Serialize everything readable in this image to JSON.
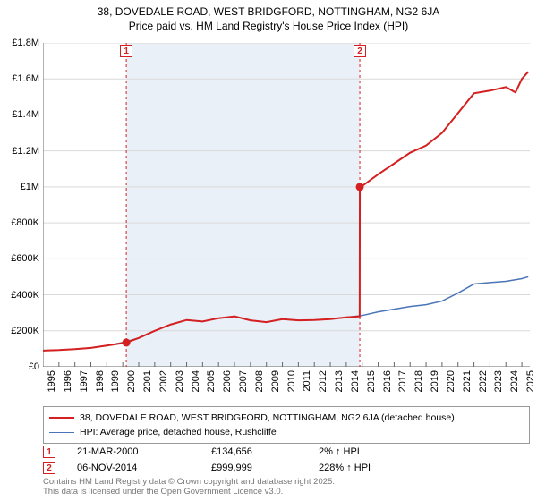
{
  "title_line1": "38, DOVEDALE ROAD, WEST BRIDGFORD, NOTTINGHAM, NG2 6JA",
  "title_line2": "Price paid vs. HM Land Registry's House Price Index (HPI)",
  "chart": {
    "type": "line",
    "background_color": "#ffffff",
    "shaded_band_color": "#eaf0f7",
    "grid_color": "#d9d9d9",
    "axis_color": "#666666",
    "title_fontsize": 12,
    "tick_fontsize": 11,
    "x": {
      "min": 1995,
      "max": 2025.5,
      "ticks": [
        1995,
        1996,
        1997,
        1998,
        1999,
        2000,
        2001,
        2002,
        2003,
        2004,
        2005,
        2006,
        2007,
        2008,
        2009,
        2010,
        2011,
        2012,
        2013,
        2014,
        2015,
        2016,
        2017,
        2018,
        2019,
        2020,
        2021,
        2022,
        2023,
        2024,
        2025
      ]
    },
    "y": {
      "min": 0,
      "max": 1800000,
      "ticks": [
        0,
        200000,
        400000,
        600000,
        800000,
        1000000,
        1200000,
        1400000,
        1600000,
        1800000
      ],
      "tick_labels": [
        "£0",
        "£200K",
        "£400K",
        "£600K",
        "£800K",
        "£1M",
        "£1.2M",
        "£1.4M",
        "£1.6M",
        "£1.8M"
      ]
    },
    "shaded_band": {
      "x_start": 2000.22,
      "x_end": 2014.85
    },
    "events": [
      {
        "n": "1",
        "x": 2000.22,
        "color": "#d42020"
      },
      {
        "n": "2",
        "x": 2014.85,
        "color": "#d42020"
      }
    ],
    "series": [
      {
        "id": "price_paid",
        "label": "38, DOVEDALE ROAD, WEST BRIDGFORD, NOTTINGHAM, NG2 6JA (detached house)",
        "color": "#d42020",
        "line_width": 2,
        "markers": [
          {
            "x": 2000.22,
            "y": 134656
          },
          {
            "x": 2014.85,
            "y": 999999
          }
        ],
        "points": [
          [
            1995,
            90000
          ],
          [
            1996,
            93000
          ],
          [
            1997,
            98000
          ],
          [
            1998,
            105000
          ],
          [
            1999,
            118000
          ],
          [
            2000.22,
            134656
          ],
          [
            2001,
            160000
          ],
          [
            2002,
            200000
          ],
          [
            2003,
            235000
          ],
          [
            2004,
            260000
          ],
          [
            2005,
            252000
          ],
          [
            2006,
            270000
          ],
          [
            2007,
            280000
          ],
          [
            2008,
            258000
          ],
          [
            2009,
            248000
          ],
          [
            2010,
            265000
          ],
          [
            2011,
            258000
          ],
          [
            2012,
            260000
          ],
          [
            2013,
            265000
          ],
          [
            2014,
            275000
          ],
          [
            2014.84,
            280000
          ],
          [
            2014.85,
            999999
          ],
          [
            2015,
            1005000
          ],
          [
            2016,
            1070000
          ],
          [
            2017,
            1130000
          ],
          [
            2018,
            1190000
          ],
          [
            2019,
            1230000
          ],
          [
            2020,
            1300000
          ],
          [
            2021,
            1410000
          ],
          [
            2022,
            1520000
          ],
          [
            2023,
            1535000
          ],
          [
            2024,
            1555000
          ],
          [
            2024.6,
            1525000
          ],
          [
            2025,
            1600000
          ],
          [
            2025.4,
            1640000
          ]
        ]
      },
      {
        "id": "hpi",
        "label": "HPI: Average price, detached house, Rushcliffe",
        "color": "#4a74b8",
        "line_width": 1.5,
        "points": [
          [
            1995,
            90000
          ],
          [
            1996,
            93000
          ],
          [
            1997,
            98000
          ],
          [
            1998,
            105000
          ],
          [
            1999,
            118000
          ],
          [
            2000,
            135000
          ],
          [
            2001,
            160000
          ],
          [
            2002,
            200000
          ],
          [
            2003,
            235000
          ],
          [
            2004,
            260000
          ],
          [
            2005,
            252000
          ],
          [
            2006,
            270000
          ],
          [
            2007,
            280000
          ],
          [
            2008,
            258000
          ],
          [
            2009,
            248000
          ],
          [
            2010,
            265000
          ],
          [
            2011,
            258000
          ],
          [
            2012,
            260000
          ],
          [
            2013,
            265000
          ],
          [
            2014,
            275000
          ],
          [
            2015,
            285000
          ],
          [
            2016,
            305000
          ],
          [
            2017,
            320000
          ],
          [
            2018,
            335000
          ],
          [
            2019,
            345000
          ],
          [
            2020,
            365000
          ],
          [
            2021,
            410000
          ],
          [
            2022,
            460000
          ],
          [
            2023,
            468000
          ],
          [
            2024,
            475000
          ],
          [
            2025,
            490000
          ],
          [
            2025.4,
            500000
          ]
        ]
      }
    ]
  },
  "legend": {
    "border_color": "#999999",
    "items": [
      {
        "color": "#d42020",
        "width": 2,
        "label": "38, DOVEDALE ROAD, WEST BRIDGFORD, NOTTINGHAM, NG2 6JA (detached house)"
      },
      {
        "color": "#4a74b8",
        "width": 1.5,
        "label": "HPI: Average price, detached house, Rushcliffe"
      }
    ]
  },
  "sales": [
    {
      "n": "1",
      "color": "#d42020",
      "date": "21-MAR-2000",
      "price": "£134,656",
      "pct": "2% ↑ HPI"
    },
    {
      "n": "2",
      "color": "#d42020",
      "date": "06-NOV-2014",
      "price": "£999,999",
      "pct": "228% ↑ HPI"
    }
  ],
  "footer_line1": "Contains HM Land Registry data © Crown copyright and database right 2025.",
  "footer_line2": "This data is licensed under the Open Government Licence v3.0.",
  "footer_color": "#777777"
}
